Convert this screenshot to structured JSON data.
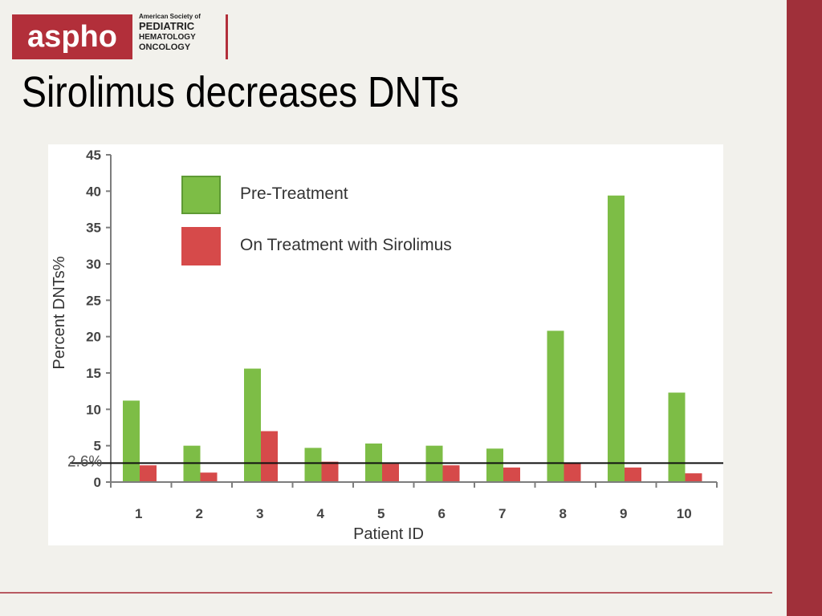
{
  "logo": {
    "mark": "aspho",
    "line1": "American Society of",
    "line2": "PEDIATRIC",
    "line3": "HEMATOLOGY",
    "line4": "ONCOLOGY"
  },
  "slide": {
    "title": "Sirolimus decreases DNTs"
  },
  "colors": {
    "pre": "#7dbd46",
    "on": "#d64a4a",
    "accent": "#a0303a"
  },
  "chart_data": {
    "type": "bar",
    "xlabel": "Patient ID",
    "ylabel": "Percent DNTs%",
    "ylim": [
      0,
      45
    ],
    "yticks": [
      0,
      5,
      10,
      15,
      20,
      25,
      30,
      35,
      40,
      45
    ],
    "categories": [
      "1",
      "2",
      "3",
      "4",
      "5",
      "6",
      "7",
      "8",
      "9",
      "10"
    ],
    "series": [
      {
        "name": "Pre-Treatment",
        "color": "#7dbd46",
        "values": [
          11.2,
          5.0,
          15.6,
          4.7,
          5.3,
          5.0,
          4.6,
          20.8,
          39.4,
          12.3
        ]
      },
      {
        "name": "On Treatment with Sirolimus",
        "color": "#d64a4a",
        "values": [
          2.3,
          1.3,
          7.0,
          2.8,
          2.5,
          2.3,
          2.0,
          2.6,
          2.0,
          1.2
        ]
      }
    ],
    "reference_line": {
      "value": 2.6,
      "label": "2.6%"
    },
    "legend_position": "top-left",
    "grid": false
  }
}
